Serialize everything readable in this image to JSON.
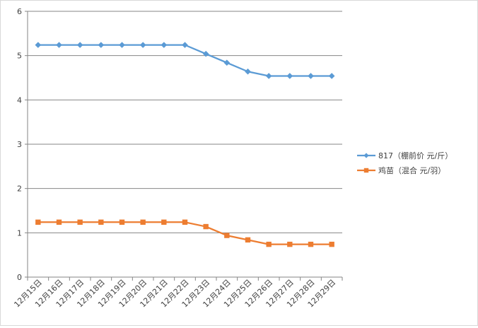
{
  "chart_data": {
    "type": "line",
    "title": "",
    "xlabel": "",
    "ylabel": "",
    "categories": [
      "12月15日",
      "12月16日",
      "12月17日",
      "12月18日",
      "12月19日",
      "12月20日",
      "12月21日",
      "12月22日",
      "12月23日",
      "12月24日",
      "12月25日",
      "12月26日",
      "12月27日",
      "12月28日",
      "12月29日"
    ],
    "ylim": [
      0,
      6
    ],
    "yticks": [
      0,
      1,
      2,
      3,
      4,
      5,
      6
    ],
    "grid": true,
    "legend_position": "right",
    "series": [
      {
        "name": "817（棚前价 元/斤）",
        "color": "#5b9bd5",
        "marker": "diamond",
        "values": [
          5.24,
          5.24,
          5.24,
          5.24,
          5.24,
          5.24,
          5.24,
          5.24,
          5.04,
          4.84,
          4.64,
          4.54,
          4.54,
          4.54,
          4.54
        ]
      },
      {
        "name": "鸡苗（混合 元/羽）",
        "color": "#ed7d31",
        "marker": "square",
        "values": [
          1.24,
          1.24,
          1.24,
          1.24,
          1.24,
          1.24,
          1.24,
          1.24,
          1.14,
          0.94,
          0.84,
          0.74,
          0.74,
          0.74,
          0.74
        ]
      }
    ]
  }
}
